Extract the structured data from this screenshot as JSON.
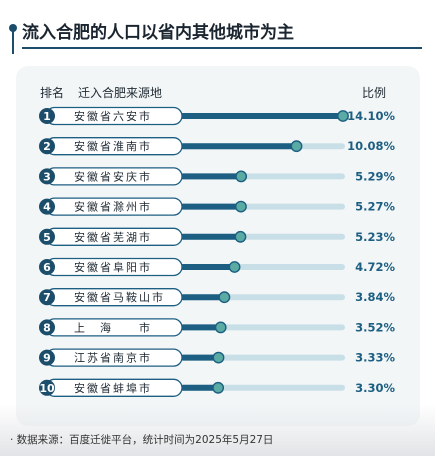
{
  "title": "流入合肥的人口以省内其他城市为主",
  "headers": {
    "rank": "排名",
    "origin": "迁入合肥来源地",
    "ratio": "比例"
  },
  "source": "· 数据来源：百度迁徙平台，统计时间为2025年5月27日",
  "colors": {
    "accent": "#1c4e6b",
    "bar_dark": "#1d5f82",
    "bar_light": "#c9dfe8",
    "knob": "#5aaba4"
  },
  "chart_data": {
    "type": "bar",
    "orientation": "horizontal",
    "xlim": [
      0,
      14.1
    ],
    "categories": [
      "安徽省六安市",
      "安徽省淮南市",
      "安徽省安庆市",
      "安徽省滁州市",
      "安徽省芜湖市",
      "安徽省阜阳市",
      "安徽省马鞍山市",
      "上　海　　市",
      "江苏省南京市",
      "安徽省蚌埠市"
    ],
    "ranks": [
      "1",
      "2",
      "3",
      "4",
      "5",
      "6",
      "7",
      "8",
      "9",
      "10"
    ],
    "values": [
      14.1,
      10.08,
      5.29,
      5.27,
      5.23,
      4.72,
      3.84,
      3.52,
      3.33,
      3.3
    ],
    "value_labels": [
      "14.10%",
      "10.08%",
      "5.29%",
      "5.27%",
      "5.23%",
      "4.72%",
      "3.84%",
      "3.52%",
      "3.33%",
      "3.30%"
    ]
  }
}
